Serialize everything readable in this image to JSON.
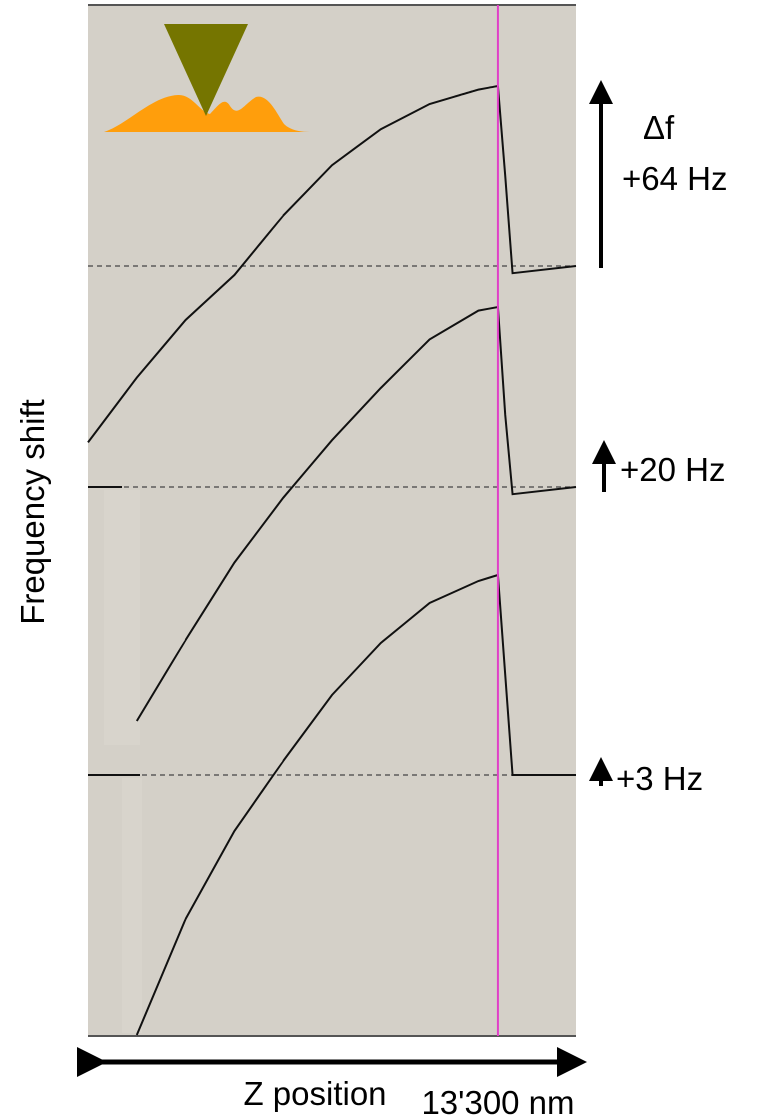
{
  "chart_data": {
    "type": "line",
    "title": "",
    "ylabel": "Frequency shift",
    "xlabel": "Z position",
    "x_end_label": "13'300 nm",
    "x": [
      0,
      0.1,
      0.2,
      0.3,
      0.4,
      0.5,
      0.6,
      0.7,
      0.8,
      0.84,
      0.855,
      0.87,
      1.0
    ],
    "xlim": [
      0,
      1
    ],
    "ylim": [
      -1.3,
      1.5
    ],
    "vertical_marker_x": 0.84,
    "vertical_marker_color": "#e040c8",
    "series": [
      {
        "scale_label": "+64 Hz",
        "delta_label": "Δf",
        "values": [
          -0.98,
          -0.62,
          -0.3,
          -0.05,
          0.28,
          0.56,
          0.76,
          0.9,
          0.98,
          1.0,
          0.5,
          -0.04,
          0.0
        ]
      },
      {
        "scale_label": "+20 Hz",
        "values": [
          null,
          -1.3,
          -0.85,
          -0.42,
          -0.06,
          0.26,
          0.55,
          0.82,
          0.98,
          1.0,
          0.4,
          -0.04,
          0.0
        ]
      },
      {
        "scale_label": "+3 Hz",
        "values": [
          null,
          -1.3,
          -0.72,
          -0.28,
          0.07,
          0.4,
          0.66,
          0.86,
          0.97,
          1.0,
          0.5,
          0.0,
          0.0
        ]
      }
    ],
    "baseline_style": "dashed",
    "plot_background": "#d4d0c8",
    "inset_icon": "afm-tip-over-surface-icon"
  }
}
